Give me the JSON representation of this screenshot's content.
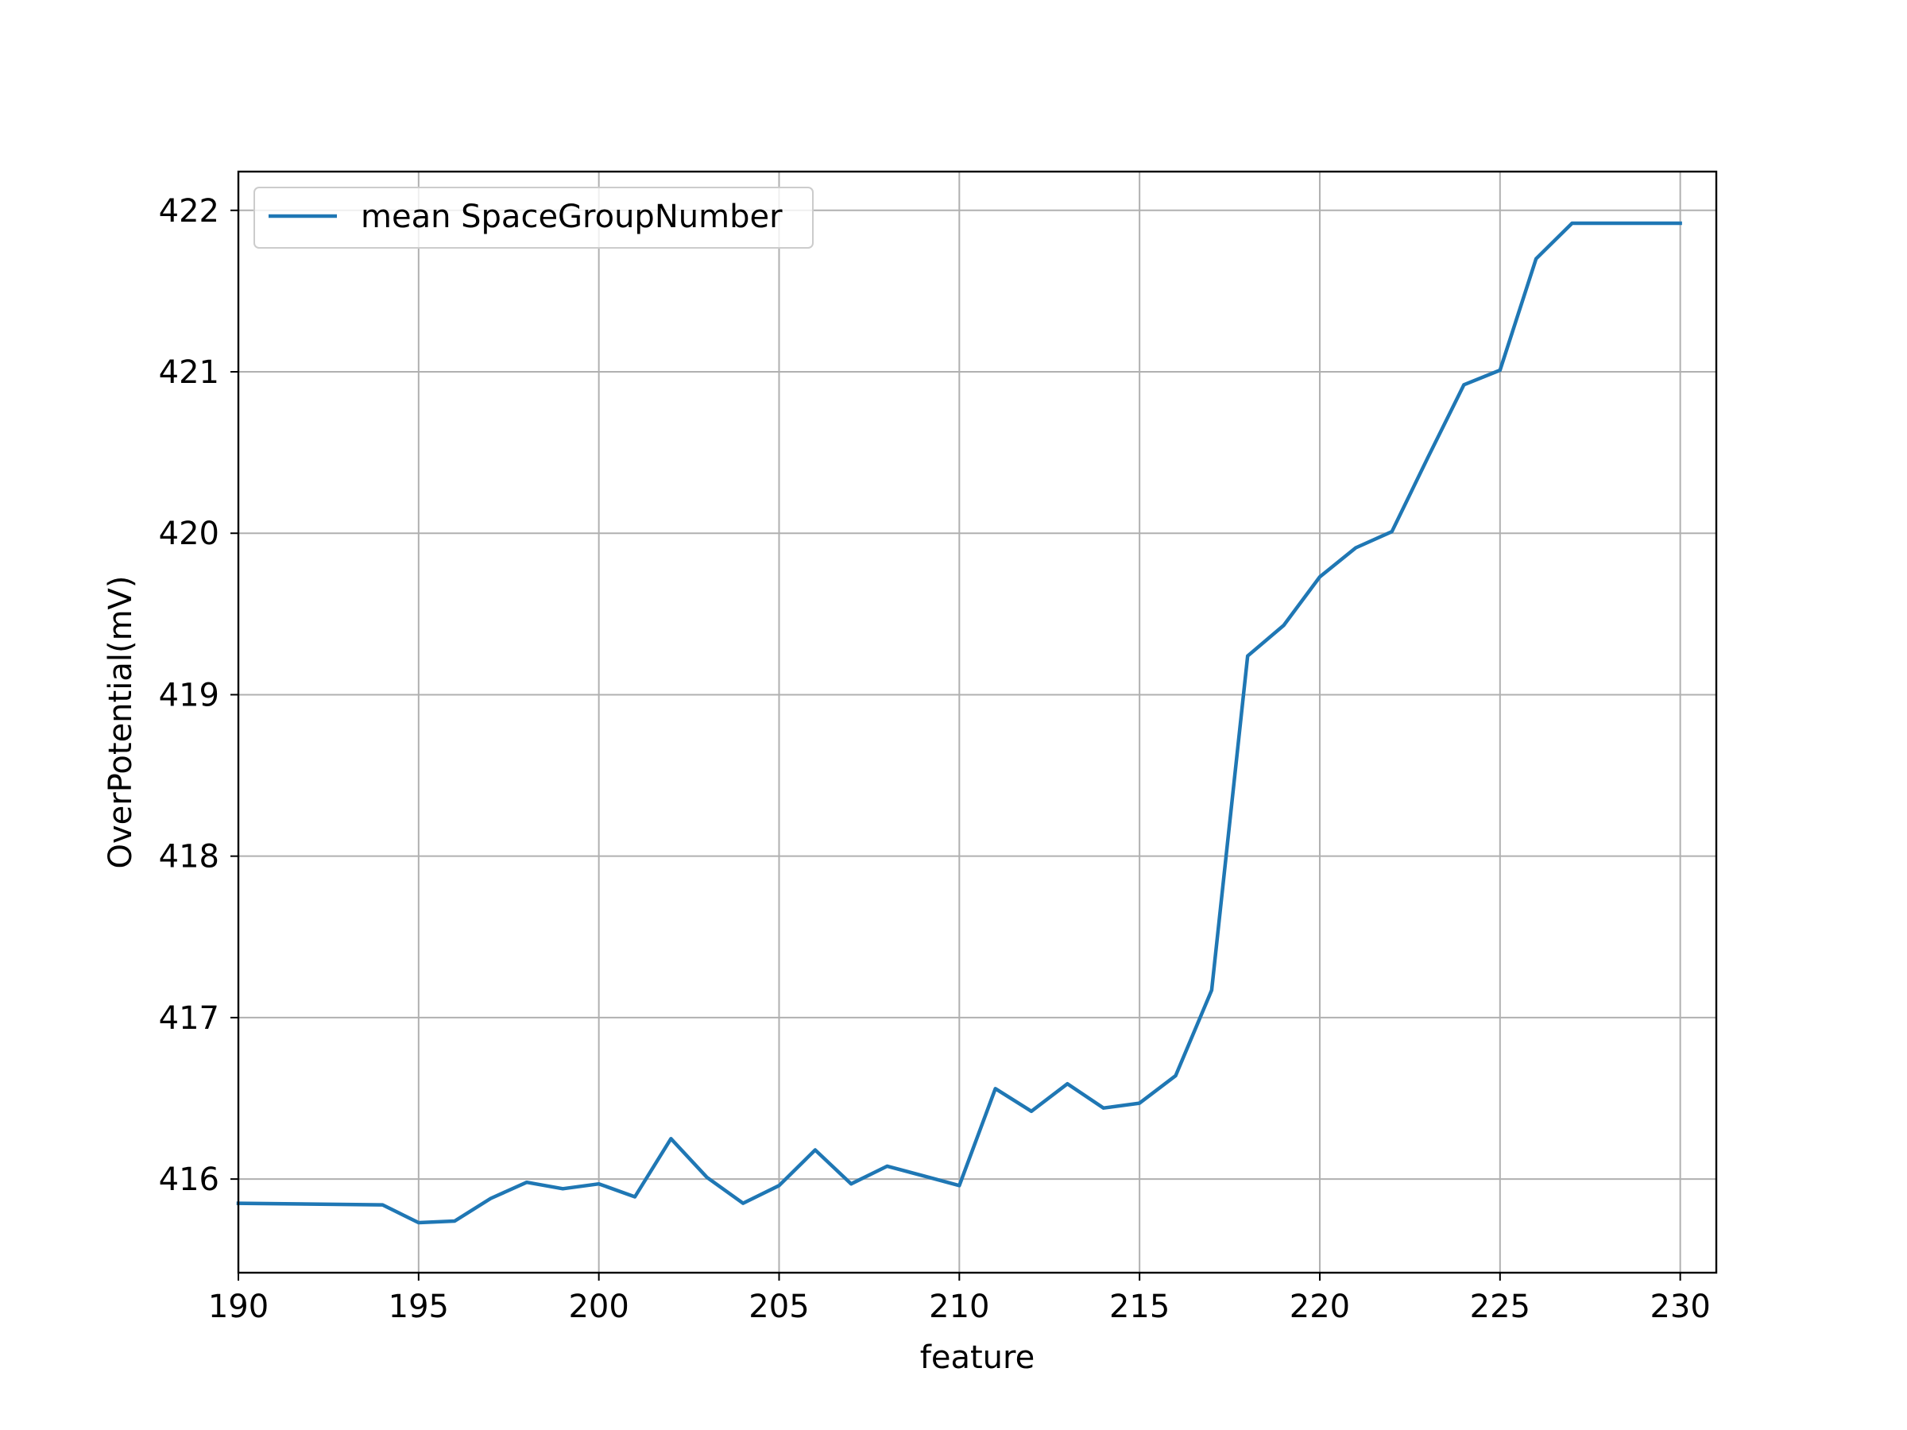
{
  "chart_data": {
    "type": "line",
    "title": "",
    "xlabel": "feature",
    "ylabel": "OverPotential(mV)",
    "xlim": [
      190,
      231
    ],
    "ylim": [
      415.42,
      422.24
    ],
    "xticks": [
      190,
      195,
      200,
      205,
      210,
      215,
      220,
      225,
      230
    ],
    "yticks": [
      416,
      417,
      418,
      419,
      420,
      421,
      422
    ],
    "grid": true,
    "legend_position": "top-left",
    "series": [
      {
        "name": "mean SpaceGroupNumber",
        "color": "#1f77b4",
        "x": [
          190,
          194,
          195,
          196,
          197,
          198,
          199,
          200,
          201,
          202,
          203,
          204,
          205,
          206,
          207,
          208,
          209,
          210,
          211,
          212,
          213,
          214,
          215,
          216,
          217,
          218,
          219,
          220,
          221,
          222,
          223,
          224,
          225,
          226,
          227,
          228,
          229,
          230
        ],
        "y": [
          415.85,
          415.84,
          415.73,
          415.74,
          415.88,
          415.98,
          415.94,
          415.97,
          415.89,
          416.25,
          416.01,
          415.85,
          415.96,
          416.18,
          415.97,
          416.08,
          416.02,
          415.96,
          416.56,
          416.42,
          416.59,
          416.44,
          416.47,
          416.64,
          417.17,
          419.24,
          419.43,
          419.73,
          419.91,
          420.01,
          420.47,
          420.92,
          421.01,
          421.7,
          421.92,
          421.92,
          421.92,
          421.92
        ]
      }
    ]
  }
}
